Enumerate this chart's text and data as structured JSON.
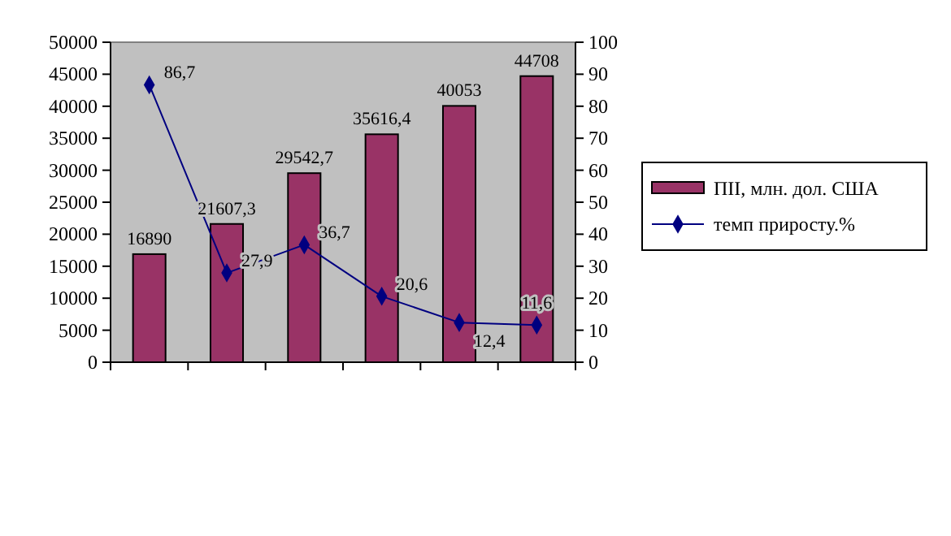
{
  "chart_data": {
    "type": "bar",
    "categories": [
      null,
      null,
      null,
      null,
      null,
      null
    ],
    "series": [
      {
        "name": "ПІІ, млн. дол. США",
        "color": "#993366",
        "values": [
          16890,
          21607.3,
          29542.7,
          35616.4,
          40053,
          44708
        ],
        "value_labels": [
          "16890",
          "21607,3",
          "29542,7",
          "35616,4",
          "40053",
          "44708"
        ]
      },
      {
        "name": "темп приросту.%",
        "type": "line",
        "axis": "y2",
        "color": "#000080",
        "marker": "diamond",
        "values": [
          86.7,
          27.9,
          36.7,
          20.6,
          12.4,
          11.6
        ],
        "value_labels": [
          "86,7",
          "27,9",
          "36,7",
          "20,6",
          "12,4",
          "11,6"
        ]
      }
    ],
    "ylim": [
      0,
      50000
    ],
    "yticks": [
      0,
      5000,
      10000,
      15000,
      20000,
      25000,
      30000,
      35000,
      40000,
      45000,
      50000
    ],
    "y2lim": [
      0,
      100
    ],
    "y2ticks": [
      0,
      10,
      20,
      30,
      40,
      50,
      60,
      70,
      80,
      90,
      100
    ],
    "grid": false,
    "legend": "right"
  }
}
